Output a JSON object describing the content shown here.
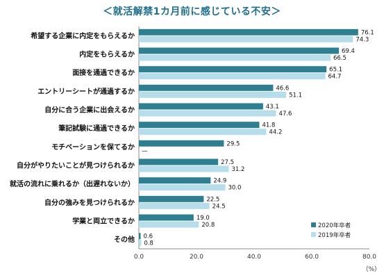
{
  "chart_data": {
    "type": "bar",
    "orientation": "horizontal",
    "title": "＜就活解禁1カ月前に感じている不安＞",
    "categories": [
      "希望する企業に内定をもらえるか",
      "内定をもらえるか",
      "面接を通過できるか",
      "エントリーシートが通過するか",
      "自分に合う企業に出会えるか",
      "筆記試験に通過できるか",
      "モチベーションを保てるか",
      "自分がやりたいことが見つけられるか",
      "就活の流れに乗れるか（出遅れないか）",
      "自分の強みを見つけられるか",
      "学業と両立できるか",
      "その他"
    ],
    "series": [
      {
        "name": "2020年卒者",
        "color": "#2f7f93",
        "values": [
          76.1,
          69.4,
          65.1,
          46.6,
          43.1,
          41.8,
          29.5,
          27.5,
          24.9,
          22.5,
          19.0,
          0.6
        ],
        "labels": [
          "76.1",
          "69.4",
          "65.1",
          "46.6",
          "43.1",
          "41.8",
          "29.5",
          "27.5",
          "24.9",
          "22.5",
          "19.0",
          "0.6"
        ]
      },
      {
        "name": "2019年卒者",
        "color": "#b7dcea",
        "values": [
          74.3,
          66.5,
          64.7,
          51.1,
          47.6,
          44.2,
          null,
          31.2,
          30.0,
          24.5,
          20.8,
          0.8
        ],
        "labels": [
          "74.3",
          "66.5",
          "64.7",
          "51.1",
          "47.6",
          "44.2",
          "—",
          "31.2",
          "30.0",
          "24.5",
          "20.8",
          "0.8"
        ]
      }
    ],
    "xlim": [
      0,
      80
    ],
    "xticks": [
      0,
      20,
      40,
      60,
      80
    ],
    "xtick_labels": [
      "0.0",
      "20.0",
      "40.0",
      "60.0",
      "80.0"
    ],
    "unit": "（%）",
    "grid": false,
    "legend_position": "bottom-right"
  }
}
